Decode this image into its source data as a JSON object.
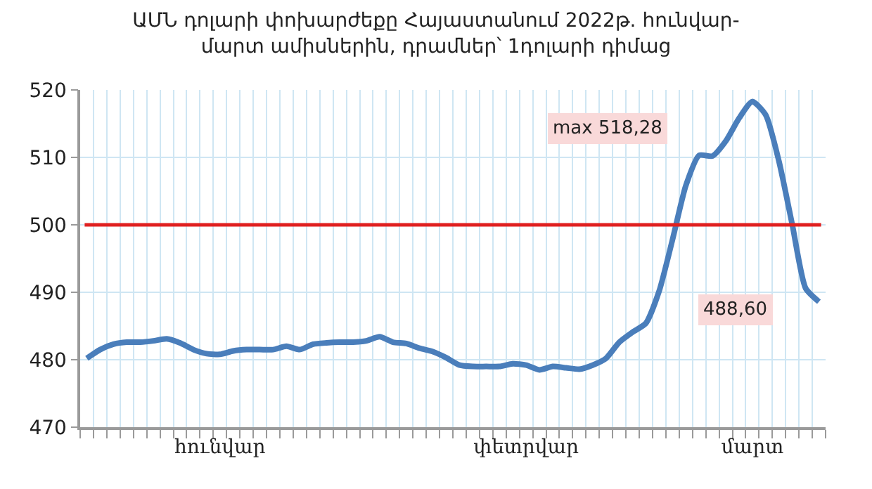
{
  "chart_data": {
    "type": "line",
    "title": "ԱՄՆ դոլարի փոխարժեքը Հայաստանում 2022թ. հունվար-\nմարտ ամիսներին, դրամներ՝ 1դոլարի դիմաց",
    "categories": [
      null,
      null,
      null,
      null,
      null,
      null,
      null,
      null,
      null,
      null,
      "հունվար",
      null,
      null,
      null,
      null,
      null,
      null,
      null,
      null,
      null,
      null,
      null,
      null,
      null,
      null,
      null,
      null,
      null,
      null,
      null,
      null,
      null,
      null,
      "փետրվար",
      null,
      null,
      null,
      null,
      null,
      null,
      null,
      null,
      null,
      null,
      null,
      null,
      null,
      null,
      null,
      null,
      "մարտ",
      null,
      null,
      null,
      null,
      null
    ],
    "series": [
      {
        "color": "#4a7ebb",
        "values": [
          480.2,
          481.5,
          482.3,
          482.6,
          482.6,
          482.8,
          483.1,
          482.5,
          481.5,
          480.9,
          480.8,
          481.3,
          481.5,
          481.5,
          481.5,
          482.0,
          481.5,
          482.3,
          482.5,
          482.6,
          482.6,
          482.8,
          483.4,
          482.6,
          482.4,
          481.7,
          481.2,
          480.3,
          479.2,
          479.0,
          479.0,
          479.0,
          479.4,
          479.2,
          478.5,
          479.0,
          478.8,
          478.6,
          479.2,
          480.2,
          482.6,
          484.1,
          485.4,
          490.2,
          497.8,
          505.8,
          510.3,
          510.2,
          512.4,
          515.8,
          518.28,
          516.3,
          509.4,
          500.0,
          490.6,
          488.6
        ]
      }
    ],
    "ylim": [
      470,
      520
    ],
    "yticks": [
      470,
      480,
      490,
      500,
      510,
      520
    ],
    "grid": true,
    "marker": "none",
    "line_style": "solid",
    "ref_lines": [
      {
        "axis": "y",
        "value": 500,
        "color": "#e02020"
      }
    ],
    "annotations": [
      "max 518,28",
      "488,60"
    ]
  }
}
